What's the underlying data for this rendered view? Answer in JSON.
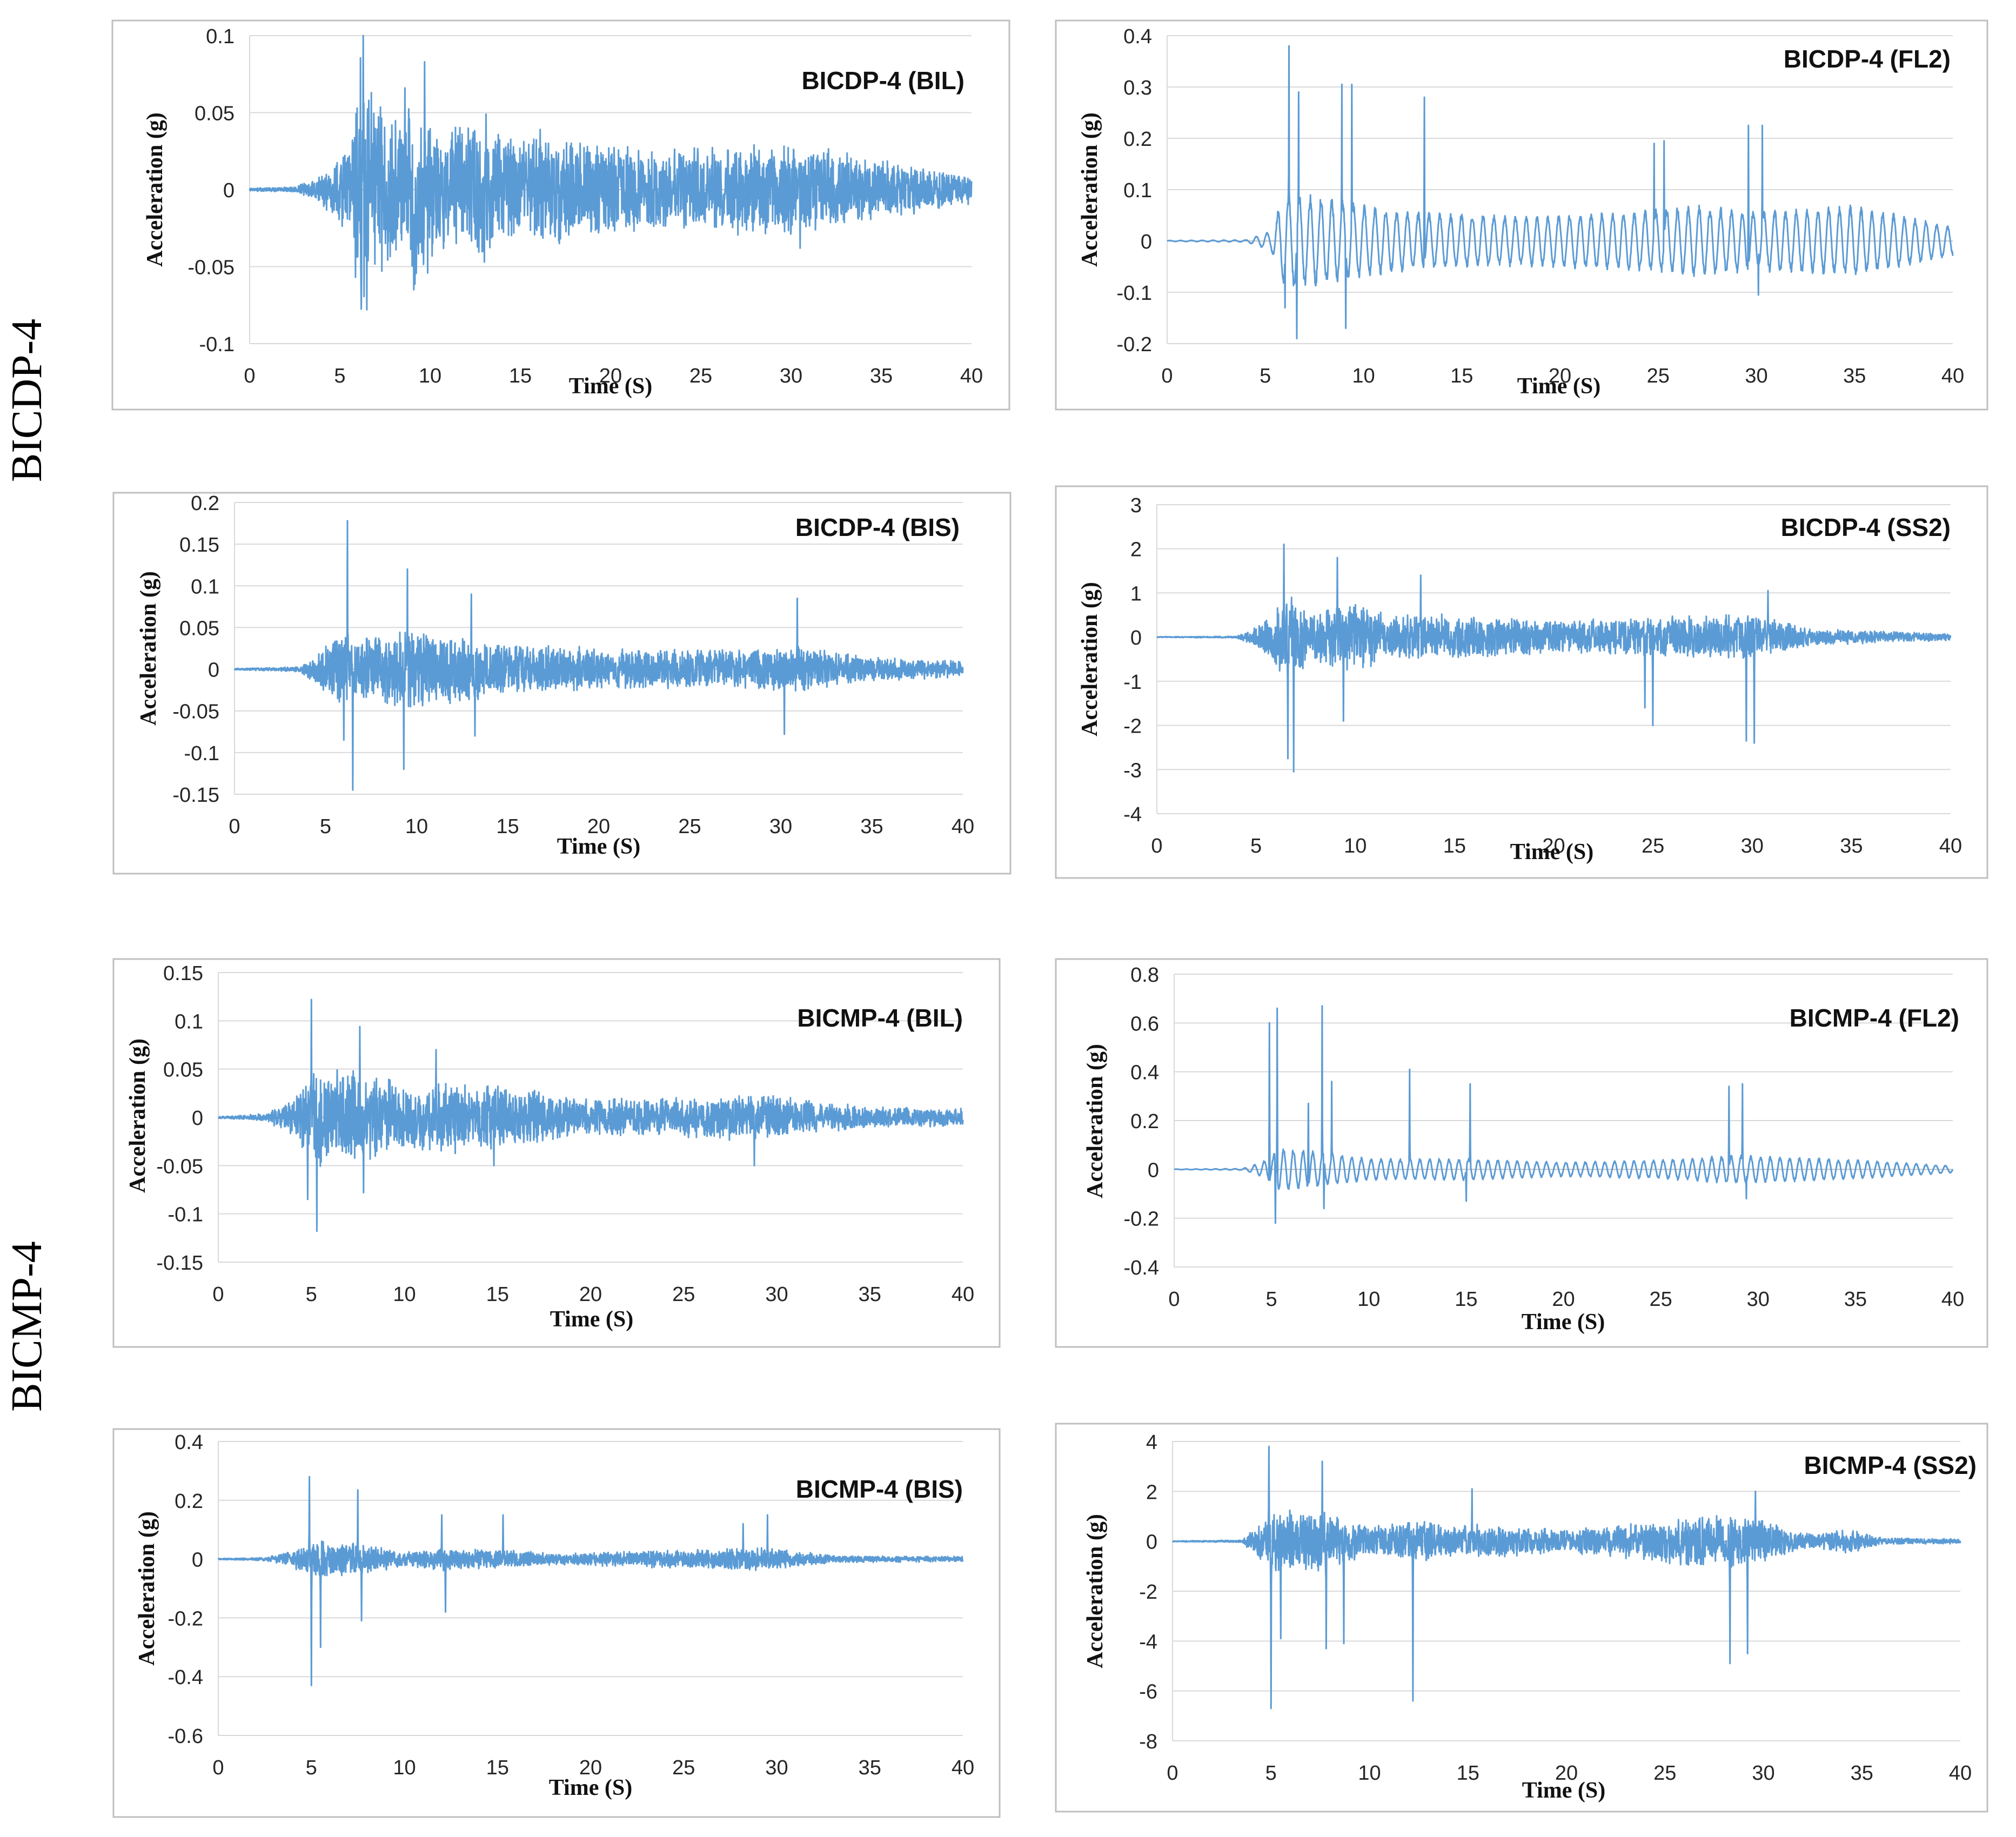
{
  "figure": {
    "group_labels": [
      "BICDP-4",
      "BICMP-4"
    ]
  },
  "colors": {
    "series": "#5B9BD5",
    "grid": "#D9D9D9",
    "frame": "#BFBFBF",
    "text": "#262626"
  },
  "chart_data": [
    {
      "type": "line",
      "title": "BICDP-4 (BIL)",
      "xlabel": "Time (S)",
      "ylabel": "Acceleration (g)",
      "xlim": [
        0,
        40
      ],
      "ylim": [
        -0.1,
        0.1
      ],
      "xticks": [
        0,
        5,
        10,
        15,
        20,
        25,
        30,
        35,
        40
      ],
      "yticks": [
        -0.1,
        -0.05,
        0,
        0.05,
        0.1
      ],
      "ytick_labels": [
        "-0.1",
        "-0.05",
        "0",
        "0.05",
        "0.1"
      ],
      "grid": true,
      "legend": "none",
      "envelope": [
        [
          0,
          0.001
        ],
        [
          2.5,
          0.002
        ],
        [
          4,
          0.01
        ],
        [
          5.5,
          0.03
        ],
        [
          6.2,
          0.095
        ],
        [
          7,
          0.06
        ],
        [
          8.5,
          0.05
        ],
        [
          9.3,
          0.075
        ],
        [
          10.5,
          0.04
        ],
        [
          13.2,
          0.05
        ],
        [
          14,
          0.035
        ],
        [
          16,
          0.04
        ],
        [
          20,
          0.03
        ],
        [
          25,
          0.028
        ],
        [
          30,
          0.032
        ],
        [
          35,
          0.02
        ],
        [
          40,
          0.01
        ]
      ],
      "peaks": [
        {
          "t": 6.3,
          "v": 0.1
        },
        {
          "t": 6.5,
          "v": -0.078
        },
        {
          "t": 8.6,
          "v": 0.066
        },
        {
          "t": 9.1,
          "v": -0.065
        },
        {
          "t": 9.7,
          "v": 0.083
        },
        {
          "t": 13.1,
          "v": 0.049
        },
        {
          "t": 13.0,
          "v": -0.047
        },
        {
          "t": 16.1,
          "v": 0.039
        },
        {
          "t": 30.5,
          "v": -0.038
        }
      ],
      "style": "noise"
    },
    {
      "type": "line",
      "title": "BICDP-4 (FL2)",
      "xlabel": "Time (S)",
      "ylabel": "Acceleration (g)",
      "xlim": [
        0,
        40
      ],
      "ylim": [
        -0.2,
        0.4
      ],
      "xticks": [
        0,
        5,
        10,
        15,
        20,
        25,
        30,
        35,
        40
      ],
      "yticks": [
        -0.2,
        -0.1,
        0,
        0.1,
        0.2,
        0.3,
        0.4
      ],
      "ytick_labels": [
        "-0.2",
        "-0.1",
        "0",
        "0.1",
        "0.2",
        "0.3",
        "0.4"
      ],
      "grid": true,
      "legend": "none",
      "envelope": [
        [
          0,
          0.001
        ],
        [
          4,
          0.002
        ],
        [
          5.3,
          0.02
        ],
        [
          6,
          0.1
        ],
        [
          9,
          0.08
        ],
        [
          12,
          0.06
        ],
        [
          18,
          0.05
        ],
        [
          24,
          0.06
        ],
        [
          27,
          0.07
        ],
        [
          30,
          0.06
        ],
        [
          35,
          0.07
        ],
        [
          40,
          0.03
        ]
      ],
      "peaks": [
        {
          "t": 6.2,
          "v": 0.38
        },
        {
          "t": 6.7,
          "v": 0.29
        },
        {
          "t": 6.0,
          "v": -0.13
        },
        {
          "t": 6.6,
          "v": -0.19
        },
        {
          "t": 8.9,
          "v": 0.305
        },
        {
          "t": 9.4,
          "v": 0.305
        },
        {
          "t": 9.1,
          "v": -0.17
        },
        {
          "t": 13.1,
          "v": 0.28
        },
        {
          "t": 24.8,
          "v": 0.19
        },
        {
          "t": 25.3,
          "v": 0.195
        },
        {
          "t": 29.6,
          "v": 0.225
        },
        {
          "t": 30.3,
          "v": 0.225
        },
        {
          "t": 30.1,
          "v": -0.105
        }
      ],
      "style": "oscillation",
      "period": 0.55
    },
    {
      "type": "line",
      "title": "BICDP-4 (BIS)",
      "xlabel": "Time (S)",
      "ylabel": "Acceleration (g)",
      "xlim": [
        0,
        40
      ],
      "ylim": [
        -0.15,
        0.2
      ],
      "xticks": [
        0,
        5,
        10,
        15,
        20,
        25,
        30,
        35,
        40
      ],
      "yticks": [
        -0.15,
        -0.1,
        -0.05,
        0,
        0.05,
        0.1,
        0.15,
        0.2
      ],
      "ytick_labels": [
        "-0.15",
        "-0.1",
        "-0.05",
        "0",
        "0.05",
        "0.1",
        "0.15",
        "0.2"
      ],
      "grid": true,
      "legend": "none",
      "envelope": [
        [
          0,
          0.001
        ],
        [
          3.5,
          0.003
        ],
        [
          4.5,
          0.02
        ],
        [
          6,
          0.05
        ],
        [
          7,
          0.04
        ],
        [
          9.5,
          0.05
        ],
        [
          13,
          0.04
        ],
        [
          16,
          0.03
        ],
        [
          22,
          0.025
        ],
        [
          28,
          0.025
        ],
        [
          31,
          0.03
        ],
        [
          35,
          0.015
        ],
        [
          40,
          0.01
        ]
      ],
      "peaks": [
        {
          "t": 6.2,
          "v": 0.178
        },
        {
          "t": 6.5,
          "v": -0.145
        },
        {
          "t": 6.0,
          "v": -0.085
        },
        {
          "t": 9.5,
          "v": 0.12
        },
        {
          "t": 9.3,
          "v": -0.12
        },
        {
          "t": 13.0,
          "v": 0.09
        },
        {
          "t": 13.2,
          "v": -0.08
        },
        {
          "t": 30.9,
          "v": 0.085
        },
        {
          "t": 30.2,
          "v": -0.078
        }
      ],
      "style": "noise"
    },
    {
      "type": "line",
      "title": "BICDP-4 (SS2)",
      "xlabel": "Time (S)",
      "ylabel": "Acceleration (g)",
      "xlim": [
        0,
        40
      ],
      "ylim": [
        -4,
        3
      ],
      "xticks": [
        0,
        5,
        10,
        15,
        20,
        25,
        30,
        35,
        40
      ],
      "yticks": [
        -4,
        -3,
        -2,
        -1,
        0,
        1,
        2,
        3
      ],
      "ytick_labels": [
        "-4",
        "-3",
        "-2",
        "-1",
        "0",
        "1",
        "2",
        "3"
      ],
      "grid": true,
      "legend": "none",
      "envelope": [
        [
          0,
          0.01
        ],
        [
          4,
          0.02
        ],
        [
          5.5,
          0.4
        ],
        [
          6.5,
          1.0
        ],
        [
          8,
          0.6
        ],
        [
          9.5,
          0.9
        ],
        [
          12,
          0.5
        ],
        [
          14,
          0.55
        ],
        [
          20,
          0.4
        ],
        [
          25,
          0.5
        ],
        [
          30,
          0.55
        ],
        [
          33,
          0.2
        ],
        [
          40,
          0.08
        ]
      ],
      "peaks": [
        {
          "t": 6.4,
          "v": 2.1
        },
        {
          "t": 6.6,
          "v": -2.75
        },
        {
          "t": 6.9,
          "v": -3.05
        },
        {
          "t": 9.1,
          "v": 1.8
        },
        {
          "t": 9.4,
          "v": -1.9
        },
        {
          "t": 13.3,
          "v": 1.4
        },
        {
          "t": 24.6,
          "v": -1.6
        },
        {
          "t": 25.0,
          "v": -2.0
        },
        {
          "t": 29.7,
          "v": -2.35
        },
        {
          "t": 30.1,
          "v": -2.4
        },
        {
          "t": 30.8,
          "v": 1.05
        }
      ],
      "style": "noise"
    },
    {
      "type": "line",
      "title": "BICMP-4 (BIL)",
      "xlabel": "Time (S)",
      "ylabel": "Acceleration (g)",
      "xlim": [
        0,
        40
      ],
      "ylim": [
        -0.15,
        0.15
      ],
      "xticks": [
        0,
        5,
        10,
        15,
        20,
        25,
        30,
        35,
        40
      ],
      "yticks": [
        -0.15,
        -0.1,
        -0.05,
        0,
        0.05,
        0.1,
        0.15
      ],
      "ytick_labels": [
        "-0.15",
        "-0.1",
        "-0.05",
        "0",
        "0.05",
        "0.1",
        "0.15"
      ],
      "grid": true,
      "legend": "none",
      "envelope": [
        [
          0,
          0.001
        ],
        [
          2.5,
          0.004
        ],
        [
          4,
          0.02
        ],
        [
          5,
          0.06
        ],
        [
          6,
          0.05
        ],
        [
          7.5,
          0.055
        ],
        [
          10,
          0.035
        ],
        [
          12,
          0.04
        ],
        [
          15,
          0.035
        ],
        [
          20,
          0.02
        ],
        [
          25,
          0.022
        ],
        [
          29,
          0.025
        ],
        [
          35,
          0.012
        ],
        [
          40,
          0.01
        ]
      ],
      "peaks": [
        {
          "t": 5.0,
          "v": 0.122
        },
        {
          "t": 5.3,
          "v": -0.118
        },
        {
          "t": 4.8,
          "v": -0.085
        },
        {
          "t": 7.6,
          "v": 0.094
        },
        {
          "t": 7.8,
          "v": -0.078
        },
        {
          "t": 11.7,
          "v": 0.07
        },
        {
          "t": 14.8,
          "v": -0.05
        },
        {
          "t": 28.8,
          "v": -0.05
        }
      ],
      "style": "noise"
    },
    {
      "type": "line",
      "title": "BICMP-4 (FL2)",
      "xlabel": "Time (S)",
      "ylabel": "Acceleration (g)",
      "xlim": [
        0,
        40
      ],
      "ylim": [
        -0.4,
        0.8
      ],
      "xticks": [
        0,
        5,
        10,
        15,
        20,
        25,
        30,
        35,
        40
      ],
      "yticks": [
        -0.4,
        -0.2,
        0,
        0.2,
        0.4,
        0.6,
        0.8
      ],
      "ytick_labels": [
        "-0.4",
        "-0.2",
        "0",
        "0.2",
        "0.4",
        "0.6",
        "0.8"
      ],
      "grid": true,
      "legend": "none",
      "envelope": [
        [
          0,
          0.001
        ],
        [
          3.5,
          0.003
        ],
        [
          4.5,
          0.03
        ],
        [
          5.5,
          0.09
        ],
        [
          8,
          0.07
        ],
        [
          10,
          0.045
        ],
        [
          15,
          0.045
        ],
        [
          20,
          0.03
        ],
        [
          25,
          0.04
        ],
        [
          29,
          0.06
        ],
        [
          35,
          0.04
        ],
        [
          40,
          0.015
        ]
      ],
      "peaks": [
        {
          "t": 4.9,
          "v": 0.6
        },
        {
          "t": 5.3,
          "v": 0.66
        },
        {
          "t": 5.2,
          "v": -0.22
        },
        {
          "t": 6.9,
          "v": 0.27
        },
        {
          "t": 7.6,
          "v": 0.67
        },
        {
          "t": 8.1,
          "v": 0.36
        },
        {
          "t": 7.7,
          "v": -0.16
        },
        {
          "t": 12.1,
          "v": 0.41
        },
        {
          "t": 15.2,
          "v": 0.35
        },
        {
          "t": 15.0,
          "v": -0.13
        },
        {
          "t": 28.5,
          "v": 0.34
        },
        {
          "t": 29.2,
          "v": 0.35
        },
        {
          "t": 29.4,
          "v": -0.12
        }
      ],
      "style": "oscillation",
      "period": 0.5
    },
    {
      "type": "line",
      "title": "BICMP-4 (BIS)",
      "xlabel": "Time (S)",
      "ylabel": "Acceleration (g)",
      "xlim": [
        0,
        40
      ],
      "ylim": [
        -0.6,
        0.4
      ],
      "xticks": [
        0,
        5,
        10,
        15,
        20,
        25,
        30,
        35,
        40
      ],
      "yticks": [
        -0.6,
        -0.4,
        -0.2,
        0,
        0.2,
        0.4
      ],
      "ytick_labels": [
        "-0.6",
        "-0.4",
        "-0.2",
        "0",
        "0.2",
        "0.4"
      ],
      "grid": true,
      "legend": "none",
      "envelope": [
        [
          0,
          0.002
        ],
        [
          2.5,
          0.006
        ],
        [
          4,
          0.03
        ],
        [
          5,
          0.07
        ],
        [
          7.5,
          0.06
        ],
        [
          10,
          0.025
        ],
        [
          12,
          0.04
        ],
        [
          15,
          0.035
        ],
        [
          18,
          0.02
        ],
        [
          23,
          0.03
        ],
        [
          28,
          0.04
        ],
        [
          30,
          0.04
        ],
        [
          33,
          0.012
        ],
        [
          40,
          0.01
        ]
      ],
      "peaks": [
        {
          "t": 4.9,
          "v": 0.28
        },
        {
          "t": 5.0,
          "v": -0.43
        },
        {
          "t": 5.5,
          "v": -0.3
        },
        {
          "t": 7.5,
          "v": 0.235
        },
        {
          "t": 7.7,
          "v": -0.21
        },
        {
          "t": 12.2,
          "v": -0.18
        },
        {
          "t": 12.0,
          "v": 0.15
        },
        {
          "t": 15.3,
          "v": 0.15
        },
        {
          "t": 28.2,
          "v": 0.12
        },
        {
          "t": 29.5,
          "v": 0.15
        }
      ],
      "style": "noise"
    },
    {
      "type": "line",
      "title": "BICMP-4 (SS2)",
      "xlabel": "Time (S)",
      "ylabel": "Acceleration (g)",
      "xlim": [
        0,
        40
      ],
      "ylim": [
        -8,
        4
      ],
      "xticks": [
        0,
        5,
        10,
        15,
        20,
        25,
        30,
        35,
        40
      ],
      "yticks": [
        -8,
        -6,
        -4,
        -2,
        0,
        2,
        4
      ],
      "ytick_labels": [
        "-8",
        "-6",
        "-4",
        "-2",
        "0",
        "2",
        "4"
      ],
      "grid": true,
      "legend": "none",
      "envelope": [
        [
          0,
          0.02
        ],
        [
          3.5,
          0.05
        ],
        [
          4.5,
          0.8
        ],
        [
          5.5,
          1.5
        ],
        [
          8,
          1.2
        ],
        [
          10,
          0.6
        ],
        [
          12,
          0.9
        ],
        [
          15,
          0.7
        ],
        [
          20,
          0.5
        ],
        [
          24,
          0.8
        ],
        [
          28,
          1.2
        ],
        [
          30,
          0.9
        ],
        [
          32,
          0.3
        ],
        [
          34.5,
          0.5
        ],
        [
          36,
          0.15
        ],
        [
          40,
          0.1
        ]
      ],
      "peaks": [
        {
          "t": 4.9,
          "v": 3.8
        },
        {
          "t": 5.0,
          "v": -6.7
        },
        {
          "t": 5.5,
          "v": -3.9
        },
        {
          "t": 7.6,
          "v": 3.2
        },
        {
          "t": 7.8,
          "v": -4.3
        },
        {
          "t": 8.7,
          "v": -4.1
        },
        {
          "t": 12.2,
          "v": -6.4
        },
        {
          "t": 15.2,
          "v": 2.1
        },
        {
          "t": 28.3,
          "v": -4.9
        },
        {
          "t": 29.2,
          "v": -4.5
        },
        {
          "t": 29.6,
          "v": 2.0
        }
      ],
      "style": "noise"
    }
  ]
}
